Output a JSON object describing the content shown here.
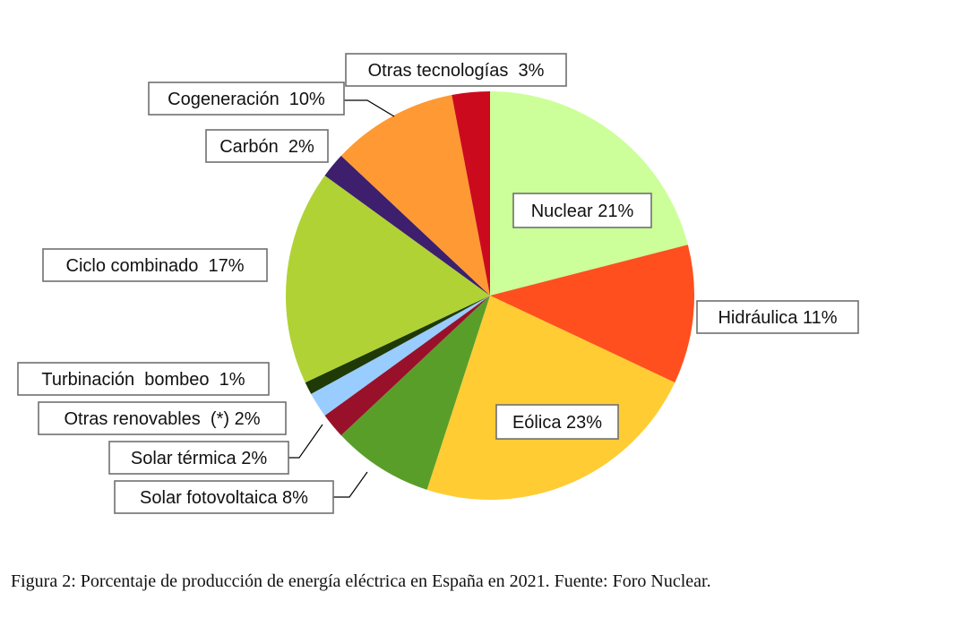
{
  "caption": "Figura 2: Porcentaje de producción de energía eléctrica en España en 2021. Fuente: Foro Nuclear.",
  "chart_data": {
    "type": "pie",
    "title": "",
    "slices": [
      {
        "name": "Nuclear",
        "label": "Nuclear 21%",
        "value": 21,
        "color": "#ccff99"
      },
      {
        "name": "Hidráulica",
        "label": "Hidráulica 11%",
        "value": 11,
        "color": "#ff4f1f"
      },
      {
        "name": "Eólica",
        "label": "Eólica 23%",
        "value": 23,
        "color": "#ffcc33"
      },
      {
        "name": "Solar fotovoltaica",
        "label": "Solar fotovoltaica 8%",
        "value": 8,
        "color": "#5a9e2a"
      },
      {
        "name": "Solar térmica",
        "label": "Solar térmica 2%",
        "value": 2,
        "color": "#99102a"
      },
      {
        "name": "Otras renovables (*)",
        "label": "Otras renovables  (*) 2%",
        "value": 2,
        "color": "#99ccff"
      },
      {
        "name": "Turbinación bombeo",
        "label": "Turbinación  bombeo  1%",
        "value": 1,
        "color": "#1f3a06"
      },
      {
        "name": "Ciclo combinado",
        "label": "Ciclo combinado  17%",
        "value": 17,
        "color": "#b0d235"
      },
      {
        "name": "Carbón",
        "label": "Carbón  2%",
        "value": 2,
        "color": "#3d1f6e"
      },
      {
        "name": "Cogeneración",
        "label": "Cogeneración  10%",
        "value": 10,
        "color": "#ff9933"
      },
      {
        "name": "Otras tecnologías",
        "label": "Otras tecnologías  3%",
        "value": 3,
        "color": "#cc0a1e"
      }
    ]
  }
}
